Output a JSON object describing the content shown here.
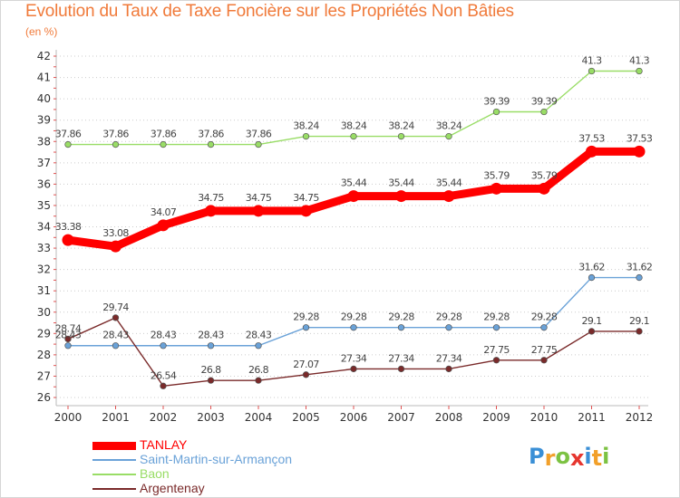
{
  "header": {
    "title": "Evolution du Taux de Taxe Foncière sur les Propriétés Non Bâties",
    "subtitle": "(en %)"
  },
  "logo": {
    "text": "Proxiti",
    "letters": [
      "P",
      "r",
      "o",
      "x",
      "i",
      "t",
      "i"
    ],
    "colors": [
      "#3a8fd6",
      "#f2a02a",
      "#7cc242",
      "#e6362f",
      "#3a8fd6",
      "#f2a02a",
      "#7cc242"
    ]
  },
  "colors": {
    "title": "#f07a3a",
    "axis_text": "#333333",
    "grid": "#cccccc",
    "tick_mark": "#e05050",
    "label_text": "#444444"
  },
  "chart_data": {
    "type": "line",
    "title": "Evolution du Taux de Taxe Foncière sur les Propriétés Non Bâties",
    "ylabel": "(en %)",
    "xlabel": "",
    "ylim": [
      26,
      42
    ],
    "y_ticks": [
      "26",
      "27",
      "28",
      "29",
      "30",
      "31",
      "32",
      "33",
      "34",
      "35",
      "36",
      "37",
      "38",
      "39",
      "40",
      "41",
      "42"
    ],
    "x": [
      "2000",
      "2001",
      "2002",
      "2003",
      "2004",
      "2005",
      "2006",
      "2007",
      "2008",
      "2009",
      "2010",
      "2011",
      "2012"
    ],
    "grid": "horizontal dotted",
    "series": [
      {
        "name": "TANLAY",
        "color": "#ff0000",
        "weight": "thick",
        "values": [
          33.38,
          33.08,
          34.07,
          34.75,
          34.75,
          34.75,
          35.44,
          35.44,
          35.44,
          35.79,
          35.79,
          37.53,
          37.53
        ],
        "labels": [
          "33.38",
          "33.08",
          "34.07",
          "34.75",
          "34.75",
          "34.75",
          "35.44",
          "35.44",
          "35.44",
          "35.79",
          "35.79",
          "37.53",
          "37.53"
        ]
      },
      {
        "name": "Saint-Martin-sur-Armançon",
        "color": "#6aa2d8",
        "weight": "thin",
        "values": [
          28.43,
          28.43,
          28.43,
          28.43,
          28.43,
          29.28,
          29.28,
          29.28,
          29.28,
          29.28,
          29.28,
          31.62,
          31.62
        ],
        "labels": [
          "28.43",
          "28.43",
          "28.43",
          "28.43",
          "28.43",
          "29.28",
          "29.28",
          "29.28",
          "29.28",
          "29.28",
          "29.28",
          "31.62",
          "31.62"
        ]
      },
      {
        "name": "Baon",
        "color": "#99dd66",
        "weight": "thin",
        "values": [
          37.86,
          37.86,
          37.86,
          37.86,
          37.86,
          38.24,
          38.24,
          38.24,
          38.24,
          39.39,
          39.39,
          41.3,
          41.3
        ],
        "labels": [
          "37.86",
          "37.86",
          "37.86",
          "37.86",
          "37.86",
          "38.24",
          "38.24",
          "38.24",
          "38.24",
          "39.39",
          "39.39",
          "41.3",
          "41.3"
        ]
      },
      {
        "name": "Argentenay",
        "color": "#7a2a2a",
        "weight": "thin",
        "values": [
          28.74,
          29.74,
          26.54,
          26.8,
          26.8,
          27.07,
          27.34,
          27.34,
          27.34,
          27.75,
          27.75,
          29.1,
          29.1
        ],
        "labels": [
          "28.74",
          "29.74",
          "26.54",
          "26.8",
          "26.8",
          "27.07",
          "27.34",
          "27.34",
          "27.34",
          "27.75",
          "27.75",
          "29.1",
          "29.1"
        ]
      }
    ]
  }
}
